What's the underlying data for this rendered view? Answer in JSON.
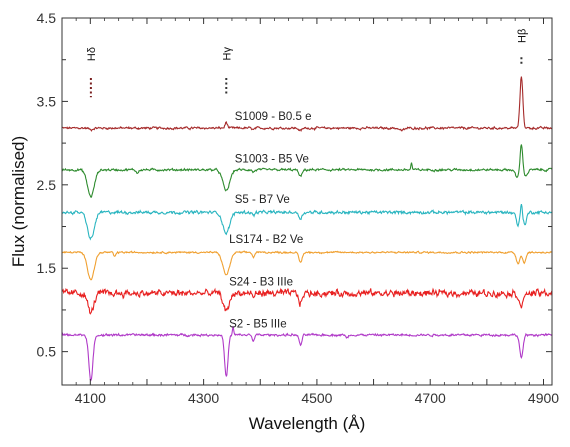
{
  "chart_data": {
    "type": "line",
    "xlabel": "Wavelength (Å)",
    "ylabel": "Flux (normalised)",
    "xlim": [
      4050,
      4915
    ],
    "ylim": [
      0.1,
      4.5
    ],
    "xticks": [
      4100,
      4300,
      4500,
      4700,
      4900
    ],
    "xtick_labels": [
      "4100",
      "4300",
      "4500",
      "4700",
      "4900"
    ],
    "yticks": [
      0.5,
      1.5,
      2.5,
      3.5,
      4.5
    ],
    "ytick_labels": [
      "0.5",
      "1.5",
      "2.5",
      "3.5",
      "4.5"
    ],
    "grid": false,
    "line_annotations": [
      {
        "label": "Hδ",
        "x": 4101
      },
      {
        "label": "Hγ",
        "x": 4340
      },
      {
        "label": "Hβ",
        "x": 4861
      }
    ],
    "series": [
      {
        "name": "S1009 - B0.5 e",
        "color": "#a52a2a",
        "baseline": 3.18,
        "noise": 0.012,
        "features": [
          {
            "x": 4101,
            "depth": -0.02,
            "width": 3
          },
          {
            "x": 4340,
            "depth": 0.07,
            "width": 2
          },
          {
            "x": 4388,
            "depth": -0.02,
            "width": 2
          },
          {
            "x": 4471,
            "depth": -0.03,
            "width": 3
          },
          {
            "x": 4650,
            "depth": -0.03,
            "width": 4
          },
          {
            "x": 4861,
            "depth": 0.62,
            "width": 2.5
          }
        ],
        "label_x": 4355,
        "label_y": 3.28
      },
      {
        "name": "S1003 - B5 Ve",
        "color": "#2e8b2e",
        "baseline": 2.68,
        "noise": 0.012,
        "features": [
          {
            "x": 4101,
            "depth": -0.32,
            "width": 6
          },
          {
            "x": 4183,
            "depth": -0.04,
            "width": 2
          },
          {
            "x": 4340,
            "depth": -0.25,
            "width": 6
          },
          {
            "x": 4388,
            "depth": -0.03,
            "width": 2
          },
          {
            "x": 4471,
            "depth": -0.08,
            "width": 3
          },
          {
            "x": 4667,
            "depth": 0.09,
            "width": 1
          },
          {
            "x": 4853,
            "depth": -0.09,
            "width": 3
          },
          {
            "x": 4861,
            "depth": 0.32,
            "width": 2
          },
          {
            "x": 4869,
            "depth": -0.07,
            "width": 3
          }
        ],
        "label_x": 4355,
        "label_y": 2.77
      },
      {
        "name": "S5 - B7 Ve",
        "color": "#2ab5c0",
        "baseline": 2.17,
        "noise": 0.016,
        "features": [
          {
            "x": 4101,
            "depth": -0.32,
            "width": 6
          },
          {
            "x": 4340,
            "depth": -0.25,
            "width": 6
          },
          {
            "x": 4388,
            "depth": -0.04,
            "width": 2
          },
          {
            "x": 4471,
            "depth": -0.07,
            "width": 3
          },
          {
            "x": 4855,
            "depth": -0.15,
            "width": 3
          },
          {
            "x": 4861,
            "depth": 0.14,
            "width": 1.5
          },
          {
            "x": 4867,
            "depth": -0.14,
            "width": 3
          }
        ],
        "label_x": 4355,
        "label_y": 2.28
      },
      {
        "name": "LS174 - B2 Ve",
        "color": "#f0a030",
        "baseline": 1.69,
        "noise": 0.009,
        "features": [
          {
            "x": 4101,
            "depth": -0.32,
            "width": 6
          },
          {
            "x": 4143,
            "depth": -0.05,
            "width": 2
          },
          {
            "x": 4340,
            "depth": -0.27,
            "width": 6
          },
          {
            "x": 4388,
            "depth": -0.06,
            "width": 2
          },
          {
            "x": 4471,
            "depth": -0.12,
            "width": 3
          },
          {
            "x": 4855,
            "depth": -0.13,
            "width": 3
          },
          {
            "x": 4866,
            "depth": -0.12,
            "width": 3
          }
        ],
        "label_x": 4345,
        "label_y": 1.8
      },
      {
        "name": "S24 - B3 IIIe",
        "color": "#e82020",
        "baseline": 1.2,
        "noise": 0.035,
        "features": [
          {
            "x": 4101,
            "depth": -0.24,
            "width": 5
          },
          {
            "x": 4340,
            "depth": -0.22,
            "width": 5
          },
          {
            "x": 4388,
            "depth": -0.05,
            "width": 2
          },
          {
            "x": 4471,
            "depth": -0.12,
            "width": 3
          },
          {
            "x": 4861,
            "depth": -0.14,
            "width": 4
          }
        ],
        "label_x": 4345,
        "label_y": 1.29
      },
      {
        "name": "S2 - B5 IIIe",
        "color": "#b03ac8",
        "baseline": 0.7,
        "noise": 0.012,
        "features": [
          {
            "x": 4101,
            "depth": -0.56,
            "width": 3.5
          },
          {
            "x": 4340,
            "depth": -0.5,
            "width": 3
          },
          {
            "x": 4352,
            "depth": 0.1,
            "width": 1
          },
          {
            "x": 4388,
            "depth": -0.07,
            "width": 2
          },
          {
            "x": 4471,
            "depth": -0.12,
            "width": 2.5
          },
          {
            "x": 4553,
            "depth": -0.04,
            "width": 2
          },
          {
            "x": 4861,
            "depth": -0.27,
            "width": 3
          }
        ],
        "label_x": 4345,
        "label_y": 0.79
      }
    ]
  }
}
